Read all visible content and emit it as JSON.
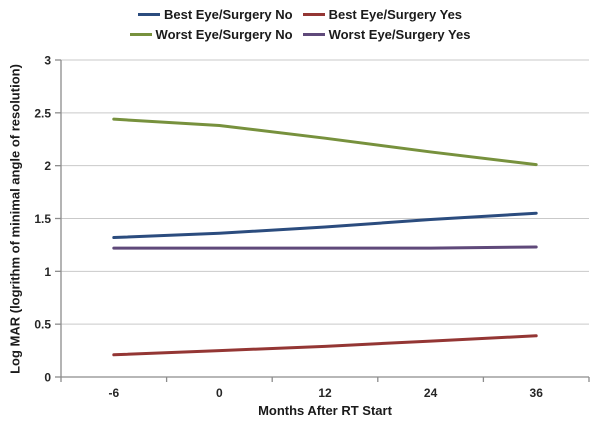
{
  "figure": {
    "background": "#ffffff"
  },
  "chart_data": {
    "type": "line",
    "title": "",
    "xlabel": "Months After RT Start",
    "ylabel": "Log MAR (logrithm of minimal angle of resolution)",
    "categories": [
      "-6",
      "0",
      "12",
      "24",
      "36"
    ],
    "x_values": [
      -6,
      0,
      12,
      24,
      36
    ],
    "ylim": [
      0,
      3
    ],
    "yticks": [
      0,
      0.5,
      1,
      1.5,
      2,
      2.5,
      3
    ],
    "grid": "horizontal-only",
    "legend_position": "top-center-two-rows",
    "axis_color": "#8c8c8c",
    "gridline_color": "#c9c9c9",
    "series": [
      {
        "name": "Best Eye/Surgery No",
        "color": "#2b4c7e",
        "values": [
          1.32,
          1.36,
          1.42,
          1.49,
          1.55
        ]
      },
      {
        "name": "Best Eye/Surgery Yes",
        "color": "#943634",
        "values": [
          0.21,
          0.25,
          0.29,
          0.34,
          0.39
        ]
      },
      {
        "name": "Worst Eye/Surgery No",
        "color": "#77913d",
        "values": [
          2.44,
          2.38,
          2.26,
          2.13,
          2.01
        ]
      },
      {
        "name": "Worst Eye/Surgery Yes",
        "color": "#5f497a",
        "values": [
          1.22,
          1.22,
          1.22,
          1.22,
          1.23
        ]
      }
    ]
  }
}
